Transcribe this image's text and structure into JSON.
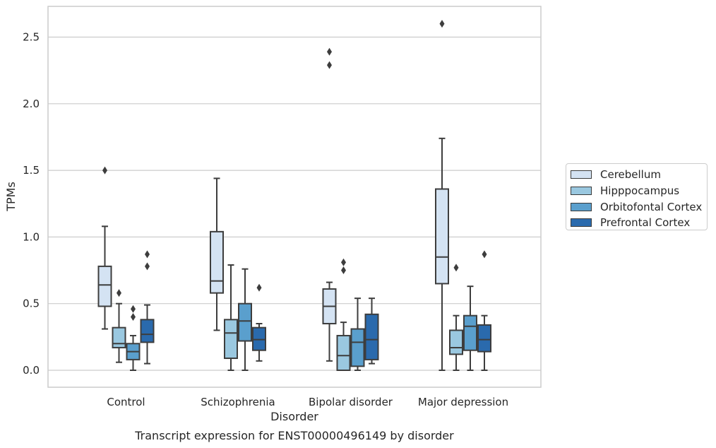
{
  "chart_data": {
    "type": "box",
    "caption": "Transcript expression for ENST00000496149 by disorder",
    "xlabel": "Disorder",
    "ylabel": "TPMs",
    "ylim": [
      -0.13,
      2.73
    ],
    "yticks": [
      "0.0",
      "0.5",
      "1.0",
      "1.5",
      "2.0",
      "2.5"
    ],
    "grid": true,
    "legend_position": "right",
    "categories": [
      "Control",
      "Schizophrenia",
      "Bipolar disorder",
      "Major depression"
    ],
    "series": [
      {
        "name": "Cerebellum",
        "color": "#d4e3f3",
        "boxes": [
          {
            "whisker_low": 0.31,
            "q1": 0.48,
            "median": 0.64,
            "q3": 0.78,
            "whisker_high": 1.08,
            "outliers": [
              1.5
            ]
          },
          {
            "whisker_low": 0.3,
            "q1": 0.58,
            "median": 0.67,
            "q3": 1.04,
            "whisker_high": 1.44,
            "outliers": []
          },
          {
            "whisker_low": 0.07,
            "q1": 0.35,
            "median": 0.48,
            "q3": 0.61,
            "whisker_high": 0.66,
            "outliers": [
              2.29,
              2.39
            ]
          },
          {
            "whisker_low": 0.0,
            "q1": 0.65,
            "median": 0.85,
            "q3": 1.36,
            "whisker_high": 1.74,
            "outliers": [
              2.6
            ]
          }
        ]
      },
      {
        "name": "Hipppocampus",
        "color": "#9ac8e0",
        "boxes": [
          {
            "whisker_low": 0.06,
            "q1": 0.17,
            "median": 0.2,
            "q3": 0.32,
            "whisker_high": 0.5,
            "outliers": [
              0.58
            ]
          },
          {
            "whisker_low": 0.0,
            "q1": 0.09,
            "median": 0.28,
            "q3": 0.38,
            "whisker_high": 0.79,
            "outliers": []
          },
          {
            "whisker_low": 0.0,
            "q1": 0.0,
            "median": 0.11,
            "q3": 0.26,
            "whisker_high": 0.36,
            "outliers": [
              0.75,
              0.81
            ]
          },
          {
            "whisker_low": 0.0,
            "q1": 0.12,
            "median": 0.17,
            "q3": 0.3,
            "whisker_high": 0.41,
            "outliers": [
              0.77
            ]
          }
        ]
      },
      {
        "name": "Orbitofontal Cortex",
        "color": "#5a9fcd",
        "boxes": [
          {
            "whisker_low": 0.0,
            "q1": 0.08,
            "median": 0.14,
            "q3": 0.2,
            "whisker_high": 0.26,
            "outliers": [
              0.4,
              0.46
            ]
          },
          {
            "whisker_low": 0.0,
            "q1": 0.22,
            "median": 0.37,
            "q3": 0.5,
            "whisker_high": 0.76,
            "outliers": []
          },
          {
            "whisker_low": 0.0,
            "q1": 0.03,
            "median": 0.21,
            "q3": 0.31,
            "whisker_high": 0.54,
            "outliers": []
          },
          {
            "whisker_low": 0.0,
            "q1": 0.15,
            "median": 0.33,
            "q3": 0.41,
            "whisker_high": 0.63,
            "outliers": []
          }
        ]
      },
      {
        "name": "Prefrontal Cortex",
        "color": "#2a6aad",
        "boxes": [
          {
            "whisker_low": 0.05,
            "q1": 0.21,
            "median": 0.27,
            "q3": 0.38,
            "whisker_high": 0.49,
            "outliers": [
              0.78,
              0.87
            ]
          },
          {
            "whisker_low": 0.07,
            "q1": 0.15,
            "median": 0.23,
            "q3": 0.32,
            "whisker_high": 0.35,
            "outliers": [
              0.62
            ]
          },
          {
            "whisker_low": 0.05,
            "q1": 0.08,
            "median": 0.23,
            "q3": 0.42,
            "whisker_high": 0.54,
            "outliers": []
          },
          {
            "whisker_low": 0.0,
            "q1": 0.14,
            "median": 0.23,
            "q3": 0.34,
            "whisker_high": 0.41,
            "outliers": [
              0.87
            ]
          }
        ]
      }
    ]
  }
}
